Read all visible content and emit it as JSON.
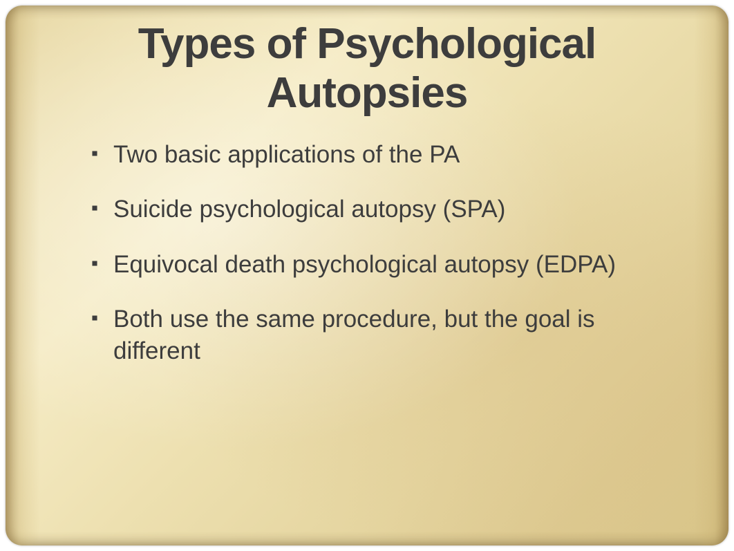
{
  "slide": {
    "title": "Types of Psychological Autopsies",
    "bullets": [
      "Two basic applications of the PA",
      "Suicide psychological autopsy (SPA)",
      "Equivocal death psychological autopsy (EDPA)",
      "Both use the same procedure, but the goal is different"
    ],
    "styling": {
      "background_gradient_colors": [
        "#e8d9a8",
        "#f0e4b8",
        "#f5ebc4",
        "#ede0b0",
        "#e5d5a0",
        "#ddc990",
        "#d8c488"
      ],
      "text_color": "#3d3d3d",
      "title_fontsize": 62,
      "title_fontweight": "bold",
      "bullet_fontsize": 35,
      "bullet_marker": "diamond",
      "font_family": "Verdana",
      "border_radius": 24,
      "slide_width": 1046,
      "slide_height": 781
    }
  }
}
